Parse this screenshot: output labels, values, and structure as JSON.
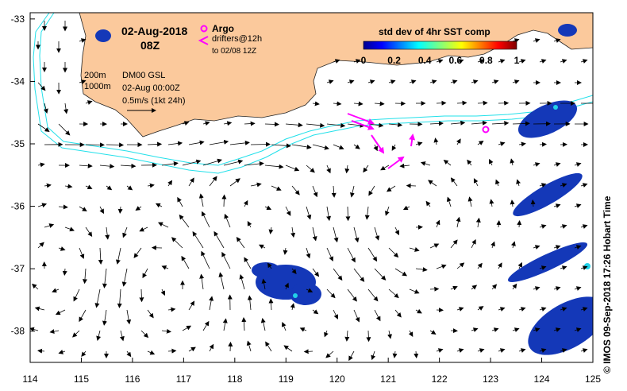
{
  "map": {
    "date": "02-Aug-2018",
    "time": "08Z",
    "legend_argo": "Argo",
    "legend_drifters_1": "drifters@12h",
    "legend_drifters_2": "to 02/08 12Z",
    "contour_200": "200m",
    "contour_1000": "1000m",
    "model": "DM00 GSL",
    "model_date": "02-Aug 00:00Z",
    "scale_label": "0.5m/s (1kt 24h)",
    "colorbar_title": "std dev of 4hr SST comp",
    "colorbar_ticks": [
      "0",
      "0.2",
      "0.4",
      "0.6",
      "0.8",
      "1"
    ],
    "credit": "© IMOS 09-Sep-2018 17:26 Hobart Time",
    "lon_ticks": [
      "114",
      "115",
      "116",
      "117",
      "118",
      "119",
      "120",
      "121",
      "122",
      "123",
      "124",
      "125"
    ],
    "lat_ticks": [
      "-33",
      "-34",
      "-35",
      "-36",
      "-37",
      "-38"
    ]
  },
  "colors": {
    "land": "#fbc99c",
    "isobath": "#22e0ea",
    "argo": "#ff00ff",
    "drifter": "#ff00ff",
    "sst_patch": "#1438b8"
  },
  "chart_data": {
    "type": "map",
    "projection": "lon-lat",
    "xlim": [
      114,
      125
    ],
    "ylim": [
      -38.5,
      -32.9
    ],
    "argo_floats": [
      {
        "lon": 122.85,
        "lat": -34.8
      }
    ],
    "eddies": [
      {
        "lon": 114.6,
        "lat": -37.0,
        "sense": "clockwise"
      },
      {
        "lon": 116.6,
        "lat": -37.2,
        "sense": "anticlockwise"
      },
      {
        "lon": 118.4,
        "lat": -36.2,
        "sense": "clockwise"
      },
      {
        "lon": 121.5,
        "lat": -36.2,
        "sense": "anticlockwise"
      },
      {
        "lon": 119.5,
        "lat": -37.9,
        "sense": "clockwise"
      }
    ],
    "leeuwin_current_axis": [
      [
        114.2,
        -34.9
      ],
      [
        115,
        -35.05
      ],
      [
        116,
        -35.2
      ],
      [
        117,
        -35.25
      ],
      [
        118,
        -35.15
      ],
      [
        119,
        -34.9
      ],
      [
        120,
        -34.7
      ],
      [
        121,
        -34.6
      ],
      [
        122,
        -34.62
      ],
      [
        123,
        -34.65
      ],
      [
        124,
        -34.6
      ],
      [
        125,
        -34.4
      ]
    ]
  }
}
